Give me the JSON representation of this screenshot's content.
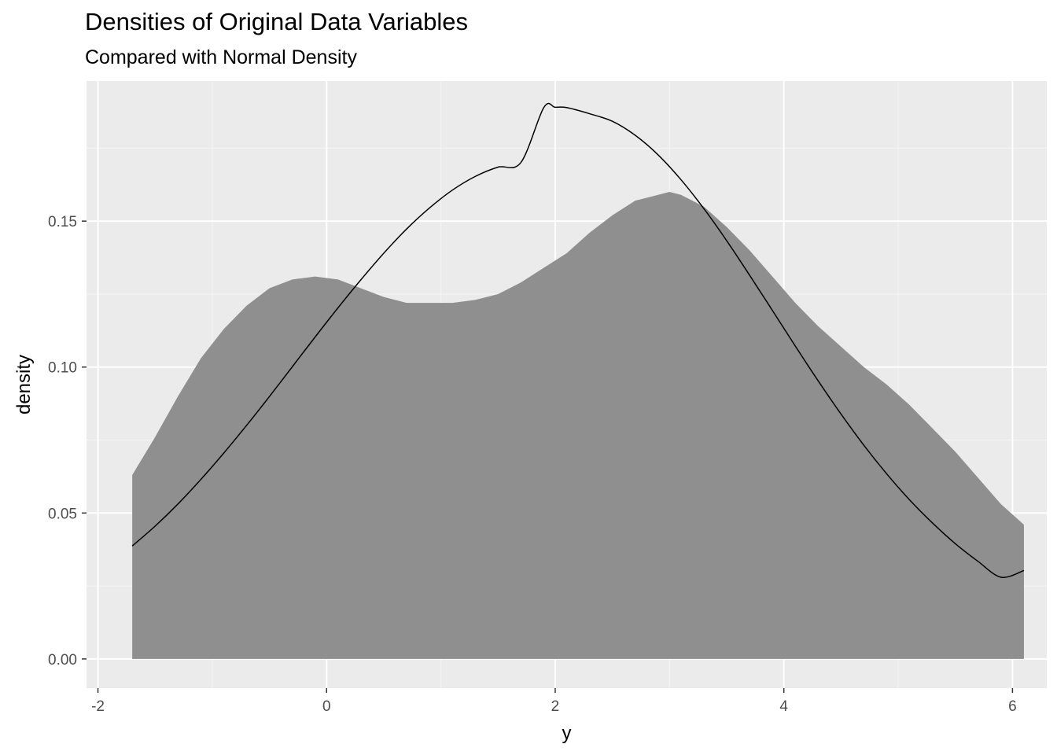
{
  "chart_data": {
    "type": "area",
    "title": "Densities of Original Data Variables",
    "subtitle": "Compared with Normal Density",
    "xlabel": "y",
    "ylabel": "density",
    "xlim": [
      -2.1,
      6.3
    ],
    "ylim": [
      -0.01,
      0.198
    ],
    "x_ticks": [
      -2,
      0,
      2,
      4,
      6
    ],
    "x_tick_labels": [
      "-2",
      "0",
      "2",
      "4",
      "6"
    ],
    "y_ticks": [
      0.0,
      0.05,
      0.1,
      0.15
    ],
    "y_tick_labels": [
      "0.00",
      "0.05",
      "0.10",
      "0.15"
    ],
    "grid": true,
    "series": [
      {
        "kind": "density_area",
        "fill_color": "#8f8f8f",
        "x": [
          -1.7,
          -1.5,
          -1.3,
          -1.1,
          -0.9,
          -0.7,
          -0.5,
          -0.3,
          -0.1,
          0.1,
          0.3,
          0.5,
          0.7,
          0.9,
          1.1,
          1.3,
          1.5,
          1.7,
          1.9,
          2.1,
          2.3,
          2.5,
          2.7,
          2.9,
          3.0,
          3.1,
          3.3,
          3.5,
          3.7,
          3.9,
          4.1,
          4.3,
          4.5,
          4.7,
          4.9,
          5.1,
          5.3,
          5.5,
          5.7,
          5.9,
          6.1
        ],
        "values": [
          0.063,
          0.076,
          0.09,
          0.103,
          0.113,
          0.121,
          0.127,
          0.13,
          0.131,
          0.13,
          0.127,
          0.124,
          0.122,
          0.122,
          0.122,
          0.123,
          0.125,
          0.129,
          0.134,
          0.139,
          0.146,
          0.152,
          0.157,
          0.159,
          0.16,
          0.159,
          0.155,
          0.148,
          0.14,
          0.131,
          0.122,
          0.114,
          0.107,
          0.1,
          0.094,
          0.087,
          0.079,
          0.071,
          0.062,
          0.053,
          0.046
        ]
      },
      {
        "kind": "normal_curve",
        "line_color": "#000000",
        "x": [
          -1.7,
          -1.5,
          -1.3,
          -1.1,
          -0.9,
          -0.7,
          -0.5,
          -0.3,
          -0.1,
          0.1,
          0.3,
          0.5,
          0.7,
          0.9,
          1.1,
          1.3,
          1.5,
          1.7,
          1.9,
          2.0,
          2.1,
          2.3,
          2.5,
          2.7,
          2.9,
          3.1,
          3.3,
          3.5,
          3.7,
          3.9,
          4.1,
          4.3,
          4.5,
          4.7,
          4.9,
          5.1,
          5.3,
          5.5,
          5.7,
          5.9,
          6.1
        ],
        "values": [
          0.0387,
          0.0455,
          0.0531,
          0.0615,
          0.0705,
          0.08,
          0.0899,
          0.1001,
          0.1103,
          0.1203,
          0.1299,
          0.139,
          0.1473,
          0.1545,
          0.1606,
          0.1653,
          0.1685,
          0.1701,
          0.1889,
          0.189,
          0.1889,
          0.1868,
          0.1842,
          0.1794,
          0.1727,
          0.1642,
          0.1543,
          0.1433,
          0.1315,
          0.1194,
          0.1072,
          0.0953,
          0.0839,
          0.0732,
          0.0634,
          0.0545,
          0.0466,
          0.0395,
          0.0334,
          0.028,
          0.0303
        ]
      }
    ]
  }
}
